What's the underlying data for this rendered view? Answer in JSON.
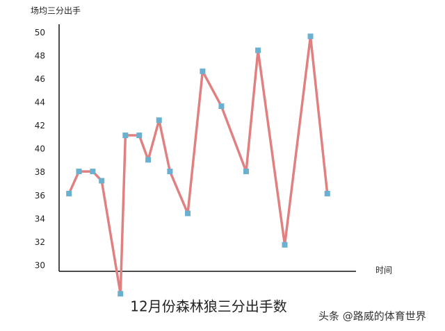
{
  "chart_data": {
    "type": "line",
    "title": "12月份森林狼三分出手数",
    "y_label": "场均三分出手",
    "x_label": "时间",
    "watermark": "头条 @路威的体育世界",
    "x": [
      1.0,
      2.0,
      3.4,
      4.3,
      6.2,
      6.7,
      8.1,
      9.0,
      10.1,
      11.2,
      13.0,
      14.5,
      16.4,
      18.9,
      20.1,
      22.8,
      25.4,
      27.1
    ],
    "xlim": [
      0,
      30
    ],
    "series": [
      {
        "name": "场均三分出手",
        "color": "#e08080",
        "marker_color": "#6ab0d0",
        "values": [
          36.2,
          38.1,
          38.1,
          37.3,
          27.6,
          41.2,
          41.2,
          39.1,
          42.5,
          38.1,
          34.5,
          46.7,
          43.7,
          38.1,
          48.5,
          31.8,
          49.7,
          36.2
        ]
      }
    ],
    "ylim": [
      29.5,
      50.7
    ],
    "yticks": [
      30,
      32,
      34,
      36,
      38,
      40,
      42,
      44,
      46,
      48,
      50
    ],
    "grid": false
  }
}
